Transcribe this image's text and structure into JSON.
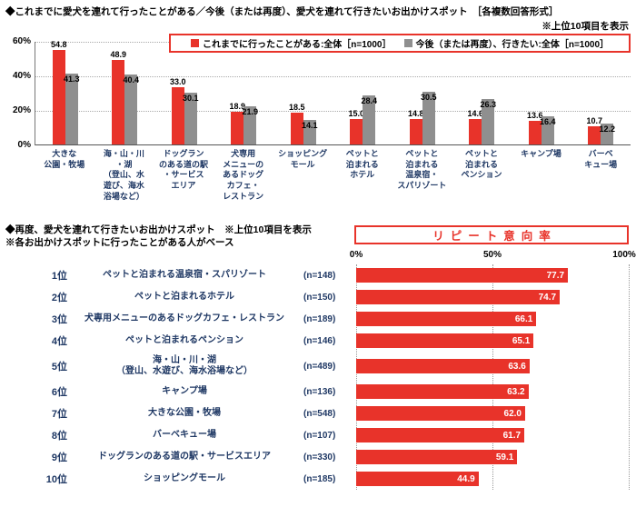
{
  "colors": {
    "red": "#e8332a",
    "gray": "#8f8f8f",
    "navy": "#1f3864",
    "grid": "#aaaaaa"
  },
  "top_chart": {
    "title": "◆これまでに愛犬を連れて行ったことがある／今後（または再度）、愛犬を連れて行きたいお出かけスポット　［各複数回答形式］",
    "note": "※上位10項目を表示",
    "y_ticks": [
      "60%",
      "40%",
      "20%",
      "0%"
    ]
  },
  "bottom_chart": {
    "title_line1": "◆再度、愛犬を連れて行きたいお出かけスポット　※上位10項目を表示",
    "title_line2": "※各お出かけスポットに行ったことがある人がベース",
    "header": "リピート意向率",
    "x_ticks": [
      "0%",
      "50%",
      "100%"
    ]
  },
  "chart_data": [
    {
      "type": "bar",
      "title": "これまでに愛犬を連れて行ったことがある／今後（または再度）、愛犬を連れて行きたいお出かけスポット",
      "ylim": [
        0,
        60
      ],
      "y_tick_values": [
        0,
        20,
        40,
        60
      ],
      "grid": true,
      "legend_position": "top-right",
      "categories": [
        "大きな\n公園・牧場",
        "海・山・川\n・湖\n（登山、水\n遊び、海水\n浴場など）",
        "ドッグラン\nのある道の駅\n・サービス\nエリア",
        "犬専用\nメニューの\nあるドッグ\nカフェ・\nレストラン",
        "ショッピング\nモール",
        "ペットと\n泊まれる\nホテル",
        "ペットと\n泊まれる\n温泉宿・\nスパリゾート",
        "ペットと\n泊まれる\nペンション",
        "キャンプ場",
        "バーベ\nキュー場"
      ],
      "series": [
        {
          "name": "これまでに行ったことがある:全体［n=1000］",
          "color": "#e8332a",
          "values": [
            54.8,
            48.9,
            33.0,
            18.9,
            18.5,
            15.0,
            14.8,
            14.6,
            13.6,
            10.7
          ]
        },
        {
          "name": "今後（または再度）、行きたい:全体［n=1000］",
          "color": "#8f8f8f",
          "values": [
            41.3,
            40.4,
            30.1,
            21.9,
            14.1,
            28.4,
            30.5,
            26.3,
            16.4,
            12.2
          ]
        }
      ]
    },
    {
      "type": "bar-horizontal",
      "title": "リピート意向率",
      "xlim": [
        0,
        100
      ],
      "x_tick_values": [
        0,
        50,
        100
      ],
      "bar_color": "#e8332a",
      "rows": [
        {
          "rank": "1位",
          "label": "ペットと泊まれる温泉宿・スパリゾート",
          "n": "(n=148)",
          "value": 77.7
        },
        {
          "rank": "2位",
          "label": "ペットと泊まれるホテル",
          "n": "(n=150)",
          "value": 74.7
        },
        {
          "rank": "3位",
          "label": "犬専用メニューのあるドッグカフェ・レストラン",
          "n": "(n=189)",
          "value": 66.1
        },
        {
          "rank": "4位",
          "label": "ペットと泊まれるペンション",
          "n": "(n=146)",
          "value": 65.1
        },
        {
          "rank": "5位",
          "label": "海・山・川・湖\n（登山、水遊び、海水浴場など）",
          "n": "(n=489)",
          "value": 63.6
        },
        {
          "rank": "6位",
          "label": "キャンプ場",
          "n": "(n=136)",
          "value": 63.2
        },
        {
          "rank": "7位",
          "label": "大きな公園・牧場",
          "n": "(n=548)",
          "value": 62.0
        },
        {
          "rank": "8位",
          "label": "バーベキュー場",
          "n": "(n=107)",
          "value": 61.7
        },
        {
          "rank": "9位",
          "label": "ドッグランのある道の駅・サービスエリア",
          "n": "(n=330)",
          "value": 59.1
        },
        {
          "rank": "10位",
          "label": "ショッピングモール",
          "n": "(n=185)",
          "value": 44.9
        }
      ]
    }
  ]
}
